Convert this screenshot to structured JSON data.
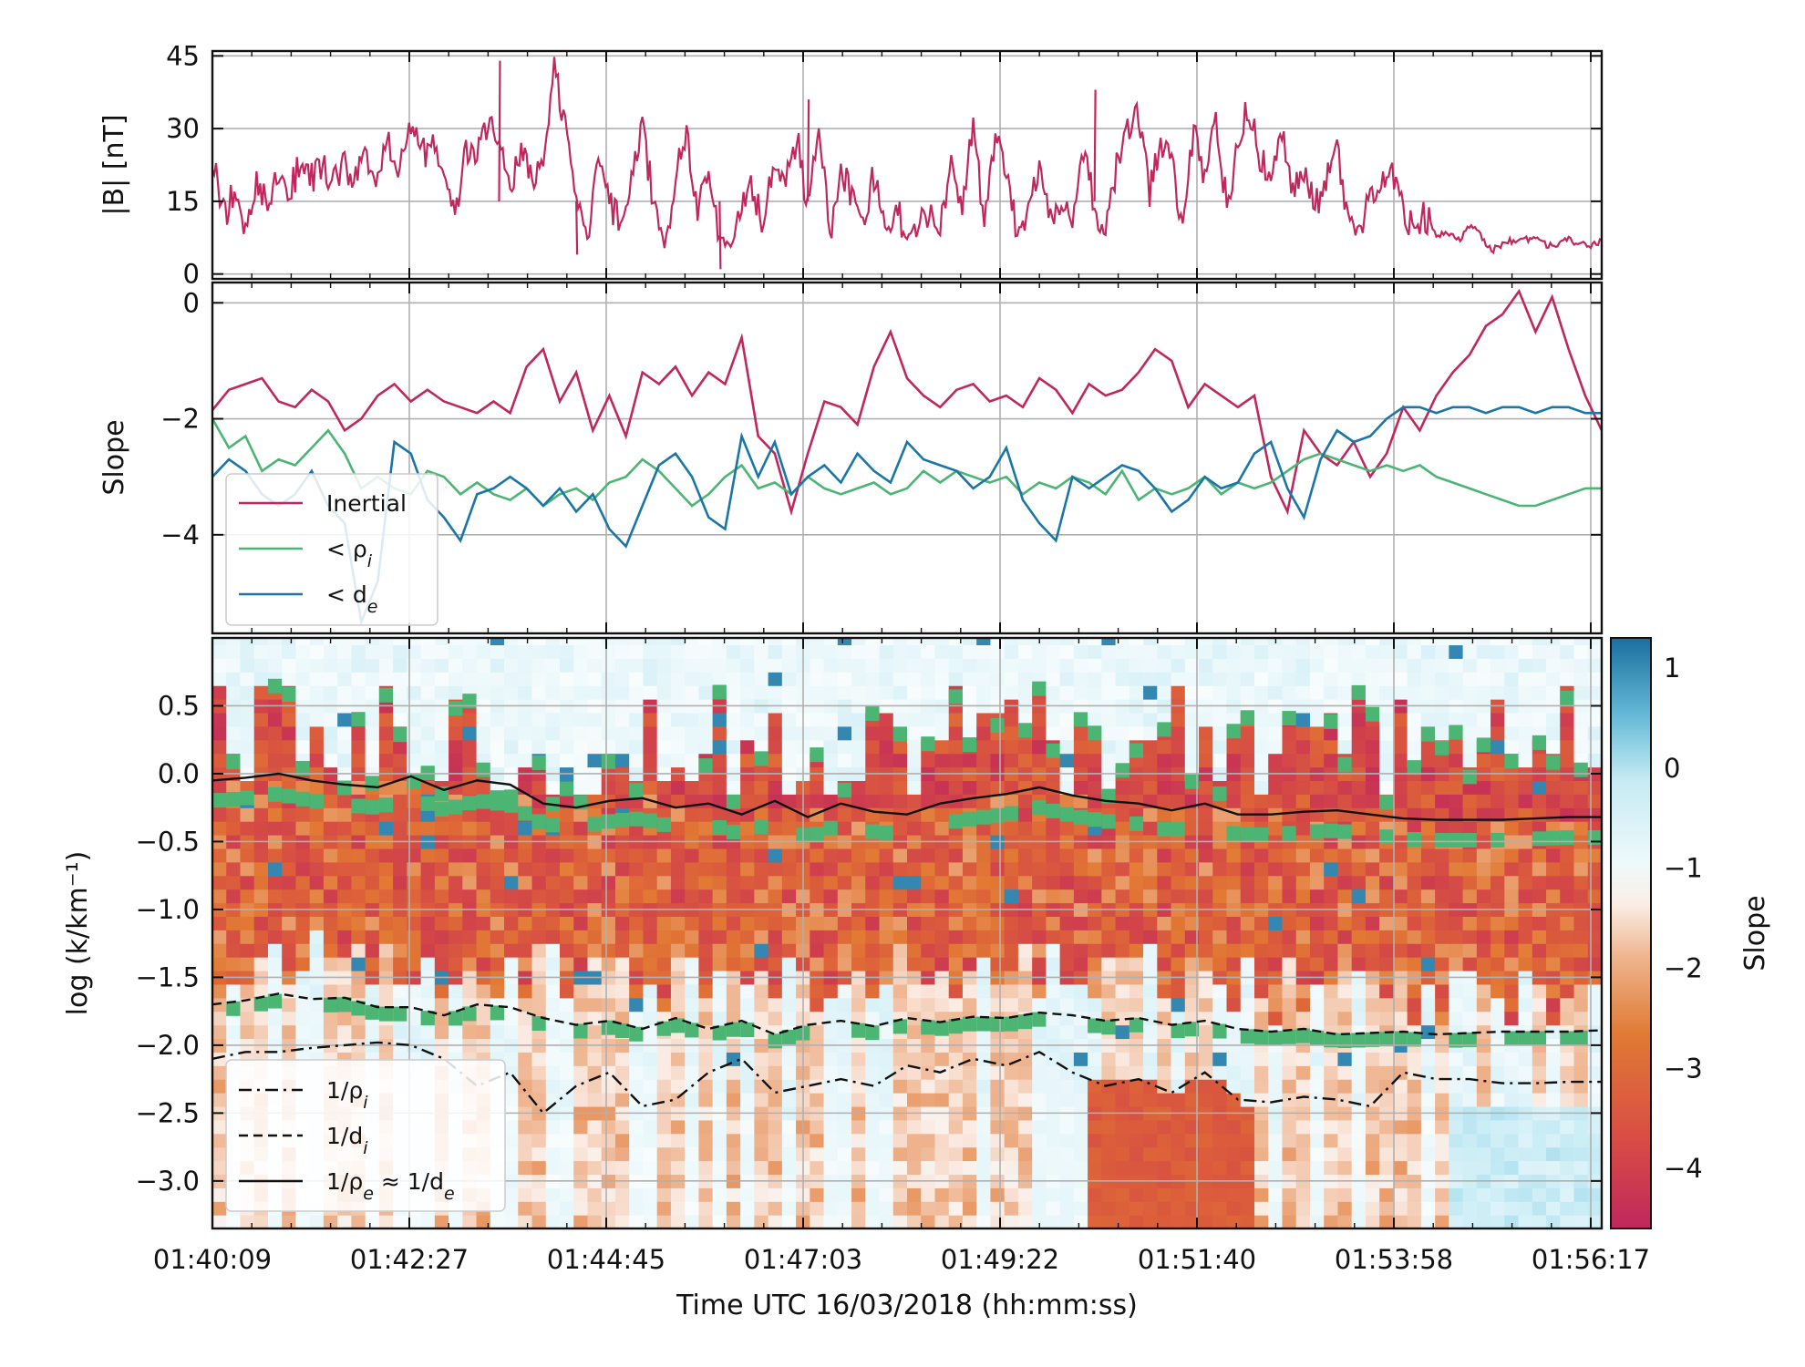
{
  "figure": {
    "xlabel": "Time UTC 16/03/2018 (hh:mm:ss)",
    "time_ticks": [
      "01:40:09",
      "01:42:27",
      "01:44:45",
      "01:47:03",
      "01:49:22",
      "01:51:40",
      "01:53:58",
      "01:56:17"
    ],
    "xlim_seconds": [
      0,
      1008
    ]
  },
  "chart_data": [
    {
      "type": "line",
      "panel": "magnetic-field",
      "ylabel": "|B| [nT]",
      "ylim": [
        -1,
        46
      ],
      "yticks": [
        0,
        15,
        30,
        45
      ],
      "grid": true,
      "color": "#c0275d",
      "x": [
        0,
        8,
        16,
        24,
        32,
        40,
        48,
        56,
        64,
        72,
        80,
        88,
        96,
        104,
        112,
        120,
        128,
        136,
        144,
        152,
        160,
        168,
        176,
        184,
        192,
        200,
        208,
        216,
        224,
        232,
        240,
        248,
        256,
        264,
        272,
        280,
        288,
        296,
        304,
        312,
        320,
        328,
        336,
        344,
        352,
        360,
        368,
        376,
        384,
        392,
        400,
        408,
        416,
        424,
        432,
        440,
        448,
        456,
        464,
        472,
        480,
        488,
        496,
        504,
        512,
        520,
        528,
        536,
        544,
        552,
        560,
        568,
        576,
        584,
        592,
        600,
        608,
        616,
        624,
        632,
        640,
        648,
        656,
        664,
        672,
        680,
        688,
        696,
        704,
        712,
        720,
        728,
        736,
        744,
        752,
        760,
        768,
        776,
        784,
        792,
        800,
        808,
        816,
        824,
        832,
        840,
        848,
        856,
        864,
        872,
        880,
        888,
        896,
        904,
        912,
        920,
        928,
        936,
        944,
        952,
        960,
        968,
        976,
        984,
        992,
        1000,
        1008
      ],
      "values": [
        25,
        12,
        17,
        10,
        19,
        16,
        21,
        18,
        22,
        20,
        23,
        19,
        22,
        21,
        24,
        20,
        26,
        22,
        30,
        24,
        28,
        22,
        12,
        25,
        24,
        31,
        27,
        18,
        25,
        20,
        22,
        44,
        30,
        14,
        8,
        24,
        15,
        10,
        18,
        30,
        15,
        6,
        20,
        28,
        12,
        22,
        8,
        5,
        14,
        18,
        10,
        24,
        19,
        28,
        14,
        30,
        8,
        22,
        15,
        12,
        20,
        9,
        14,
        7,
        11,
        13,
        8,
        24,
        15,
        31,
        10,
        28,
        22,
        8,
        14,
        20,
        12,
        16,
        10,
        25,
        14,
        8,
        22,
        30,
        33,
        16,
        28,
        24,
        10,
        29,
        18,
        32,
        14,
        26,
        35,
        24,
        20,
        30,
        16,
        22,
        14,
        20,
        26,
        12,
        10,
        15,
        18,
        20,
        14,
        9,
        12,
        8,
        8,
        7,
        10,
        8,
        5,
        6,
        7,
        7,
        7,
        6,
        6,
        7,
        6,
        6,
        7
      ],
      "spikes": [
        {
          "x": 208,
          "value": 44
        },
        {
          "x": 432,
          "value": 36
        },
        {
          "x": 640,
          "value": 38
        },
        {
          "x": 264,
          "value": 4
        },
        {
          "x": 368,
          "value": 1
        }
      ]
    },
    {
      "type": "line",
      "panel": "slope",
      "ylabel": "Slope",
      "ylim": [
        -5.7,
        0.35
      ],
      "yticks": [
        0,
        -2,
        -4
      ],
      "grid": true,
      "legend": {
        "position": "lower-left",
        "entries": [
          "Inertial",
          "< ρi",
          "< de"
        ]
      },
      "x": [
        0,
        12,
        24,
        36,
        48,
        60,
        72,
        84,
        96,
        108,
        120,
        132,
        144,
        156,
        168,
        180,
        192,
        204,
        216,
        228,
        240,
        252,
        264,
        276,
        288,
        300,
        312,
        324,
        336,
        348,
        360,
        372,
        384,
        396,
        408,
        420,
        432,
        444,
        456,
        468,
        480,
        492,
        504,
        516,
        528,
        540,
        552,
        564,
        576,
        588,
        600,
        612,
        624,
        636,
        648,
        660,
        672,
        684,
        696,
        708,
        720,
        732,
        744,
        756,
        768,
        780,
        792,
        804,
        816,
        828,
        840,
        852,
        864,
        876,
        888,
        900,
        912,
        924,
        936,
        948,
        960,
        972,
        984,
        996,
        1008
      ],
      "series": [
        {
          "name": "Inertial",
          "color": "#c0275d",
          "values": [
            -1.85,
            -1.5,
            -1.4,
            -1.3,
            -1.7,
            -1.8,
            -1.5,
            -1.7,
            -2.2,
            -2.0,
            -1.6,
            -1.4,
            -1.7,
            -1.5,
            -1.7,
            -1.8,
            -1.9,
            -1.7,
            -1.9,
            -1.1,
            -0.8,
            -1.7,
            -1.2,
            -2.2,
            -1.6,
            -2.3,
            -1.2,
            -1.4,
            -1.1,
            -1.6,
            -1.2,
            -1.4,
            -0.6,
            -2.3,
            -2.6,
            -3.6,
            -2.6,
            -1.7,
            -1.8,
            -2.1,
            -1.1,
            -0.5,
            -1.3,
            -1.6,
            -1.8,
            -1.5,
            -1.4,
            -1.7,
            -1.6,
            -1.8,
            -1.3,
            -1.5,
            -1.9,
            -1.4,
            -1.6,
            -1.5,
            -1.2,
            -0.8,
            -1.0,
            -1.8,
            -1.4,
            -1.6,
            -1.8,
            -1.6,
            -3.0,
            -3.6,
            -2.2,
            -2.6,
            -2.8,
            -2.4,
            -3.0,
            -2.6,
            -1.8,
            -2.2,
            -1.6,
            -1.2,
            -0.9,
            -0.4,
            -0.2,
            0.2,
            -0.5,
            0.1,
            -0.8,
            -1.6,
            -2.2
          ]
        },
        {
          "name": "< ρi",
          "color": "#4cb573",
          "values": [
            -2.0,
            -2.5,
            -2.3,
            -2.9,
            -2.7,
            -2.8,
            -2.5,
            -2.2,
            -2.6,
            -3.2,
            -3.0,
            -3.2,
            -3.3,
            -2.9,
            -3.0,
            -3.3,
            -3.1,
            -3.3,
            -3.4,
            -3.2,
            -3.5,
            -3.3,
            -3.2,
            -3.4,
            -3.1,
            -3.0,
            -2.7,
            -2.9,
            -3.2,
            -3.5,
            -3.3,
            -3.0,
            -2.8,
            -3.2,
            -3.1,
            -3.3,
            -3.0,
            -3.2,
            -3.3,
            -3.2,
            -3.1,
            -3.3,
            -3.2,
            -2.9,
            -3.1,
            -2.9,
            -3.0,
            -3.1,
            -3.0,
            -3.3,
            -3.1,
            -3.2,
            -3.0,
            -3.1,
            -3.3,
            -2.9,
            -3.4,
            -3.2,
            -3.3,
            -3.2,
            -3.0,
            -3.3,
            -3.1,
            -3.2,
            -3.1,
            -2.9,
            -2.7,
            -2.6,
            -2.7,
            -2.8,
            -2.9,
            -2.8,
            -2.9,
            -2.8,
            -3.0,
            -3.1,
            -3.2,
            -3.3,
            -3.4,
            -3.5,
            -3.5,
            -3.4,
            -3.3,
            -3.2,
            -3.2
          ]
        },
        {
          "name": "< de",
          "color": "#1a76a6",
          "values": [
            -3.0,
            -2.7,
            -2.9,
            -3.3,
            -3.5,
            -3.3,
            -2.9,
            -3.5,
            -3.8,
            -5.5,
            -4.8,
            -2.4,
            -2.6,
            -3.4,
            -3.7,
            -4.1,
            -3.3,
            -3.2,
            -3.0,
            -3.2,
            -3.5,
            -3.2,
            -3.6,
            -3.3,
            -3.9,
            -4.2,
            -3.5,
            -2.8,
            -2.6,
            -3.0,
            -3.7,
            -3.9,
            -2.3,
            -3.0,
            -2.4,
            -3.3,
            -3.0,
            -2.8,
            -3.1,
            -2.6,
            -2.9,
            -3.1,
            -2.4,
            -2.7,
            -2.8,
            -2.9,
            -3.2,
            -3.0,
            -2.5,
            -3.4,
            -3.8,
            -4.1,
            -3.0,
            -3.2,
            -3.0,
            -2.8,
            -2.9,
            -3.2,
            -3.6,
            -3.4,
            -3.0,
            -3.2,
            -3.1,
            -2.6,
            -2.4,
            -3.2,
            -3.7,
            -2.7,
            -2.2,
            -2.4,
            -2.3,
            -2.0,
            -1.8,
            -1.8,
            -1.9,
            -1.8,
            -1.8,
            -1.9,
            -1.8,
            -1.8,
            -1.9,
            -1.8,
            -1.8,
            -1.9,
            -1.9
          ]
        }
      ]
    },
    {
      "type": "heatmap",
      "panel": "slope-spectrogram",
      "ylabel": "log (k/km⁻¹)",
      "ylim": [
        -3.35,
        1.0
      ],
      "yticks": [
        0.5,
        0.0,
        -0.5,
        -1.0,
        -1.5,
        -2.0,
        -2.5,
        -3.0
      ],
      "ytick_labels": [
        "0.5",
        "0.0",
        "−0.5",
        "−1.0",
        "−1.5",
        "−2.0",
        "−2.5",
        "−3.0"
      ],
      "grid": true,
      "colorbar": {
        "label": "Slope",
        "range": [
          -4.6,
          1.3
        ],
        "ticks": [
          1,
          0,
          -1,
          -2,
          -3,
          -4
        ],
        "tick_labels": [
          "1",
          "0",
          "−1",
          "−2",
          "−3",
          "−4"
        ]
      },
      "legend": {
        "position": "lower-left",
        "entries": [
          "1/ρi",
          "1/di",
          "1/ρe ≈ 1/de"
        ]
      },
      "x": [
        0,
        24,
        48,
        72,
        96,
        120,
        144,
        168,
        192,
        216,
        240,
        264,
        288,
        312,
        336,
        360,
        384,
        408,
        432,
        456,
        480,
        504,
        528,
        552,
        576,
        600,
        624,
        648,
        672,
        696,
        720,
        744,
        768,
        792,
        816,
        840,
        864,
        888,
        912,
        936,
        960,
        984,
        1008
      ],
      "series": [
        {
          "name": "1/ρe ≈ 1/de",
          "style": "solid",
          "values": [
            -0.05,
            -0.03,
            0.0,
            -0.05,
            -0.08,
            -0.1,
            -0.02,
            -0.12,
            -0.05,
            -0.08,
            -0.22,
            -0.25,
            -0.2,
            -0.18,
            -0.25,
            -0.22,
            -0.3,
            -0.2,
            -0.32,
            -0.22,
            -0.28,
            -0.3,
            -0.22,
            -0.18,
            -0.15,
            -0.1,
            -0.16,
            -0.2,
            -0.22,
            -0.27,
            -0.22,
            -0.3,
            -0.3,
            -0.28,
            -0.27,
            -0.3,
            -0.33,
            -0.34,
            -0.34,
            -0.34,
            -0.33,
            -0.32,
            -0.32
          ]
        },
        {
          "name": "1/di",
          "style": "dashed",
          "values": [
            -1.7,
            -1.67,
            -1.62,
            -1.66,
            -1.65,
            -1.72,
            -1.72,
            -1.78,
            -1.7,
            -1.72,
            -1.8,
            -1.85,
            -1.82,
            -1.88,
            -1.8,
            -1.88,
            -1.82,
            -1.92,
            -1.85,
            -1.82,
            -1.86,
            -1.8,
            -1.83,
            -1.79,
            -1.8,
            -1.76,
            -1.78,
            -1.82,
            -1.8,
            -1.85,
            -1.82,
            -1.88,
            -1.9,
            -1.88,
            -1.92,
            -1.91,
            -1.9,
            -1.92,
            -1.91,
            -1.9,
            -1.9,
            -1.9,
            -1.89
          ]
        },
        {
          "name": "1/ρi",
          "style": "dashdot",
          "values": [
            -2.1,
            -2.05,
            -2.05,
            -2.02,
            -2.0,
            -1.98,
            -2.0,
            -2.1,
            -2.3,
            -2.2,
            -2.5,
            -2.3,
            -2.2,
            -2.45,
            -2.4,
            -2.2,
            -2.1,
            -2.35,
            -2.3,
            -2.25,
            -2.3,
            -2.15,
            -2.2,
            -2.1,
            -2.15,
            -2.05,
            -2.2,
            -2.3,
            -2.25,
            -2.35,
            -2.2,
            -2.4,
            -2.42,
            -2.38,
            -2.4,
            -2.45,
            -2.2,
            -2.25,
            -2.25,
            -2.28,
            -2.28,
            -2.27,
            -2.27
          ]
        }
      ]
    }
  ]
}
